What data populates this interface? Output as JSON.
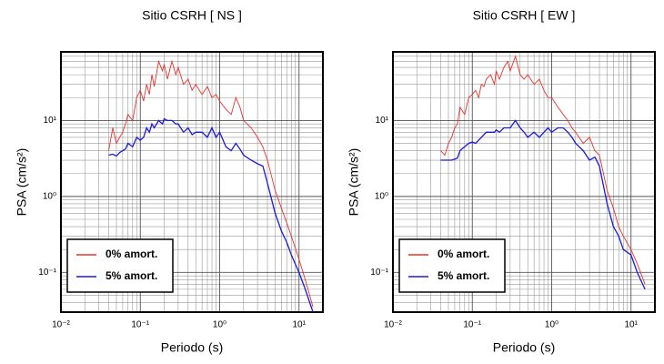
{
  "chart_data": [
    {
      "type": "line",
      "title": "Sitio CSRH [ NS ]",
      "xlabel": "Periodo (s)",
      "ylabel": "PSA (cm/s²)",
      "log_x": true,
      "log_y": true,
      "grid": true,
      "legend": "lower left",
      "xlim": [
        0.01,
        20
      ],
      "ylim": [
        0.03,
        80
      ],
      "xticks": [
        {
          "value": 0.01,
          "label": "10⁻²"
        },
        {
          "value": 0.1,
          "label": "10⁻¹"
        },
        {
          "value": 1,
          "label": "10⁰"
        },
        {
          "value": 10,
          "label": "10¹"
        }
      ],
      "yticks": [
        {
          "value": 0.1,
          "label": "10⁻¹"
        },
        {
          "value": 1,
          "label": "10⁰"
        },
        {
          "value": 10,
          "label": "10¹"
        }
      ],
      "xminorticks": [
        0.02,
        0.03,
        0.04,
        0.05,
        0.06,
        0.07,
        0.08,
        0.09,
        0.2,
        0.3,
        0.4,
        0.5,
        0.6,
        0.7,
        0.8,
        0.9,
        2,
        3,
        4,
        5,
        6,
        7,
        8,
        9
      ],
      "yminorticks": [
        0.04,
        0.05,
        0.06,
        0.07,
        0.08,
        0.09,
        0.2,
        0.3,
        0.4,
        0.5,
        0.6,
        0.7,
        0.8,
        0.9,
        2,
        3,
        4,
        5,
        6,
        7,
        8,
        9,
        20,
        30,
        40,
        50,
        60,
        70
      ],
      "x": [
        0.04,
        0.045,
        0.05,
        0.055,
        0.06,
        0.065,
        0.07,
        0.08,
        0.09,
        0.1,
        0.11,
        0.12,
        0.13,
        0.14,
        0.15,
        0.17,
        0.19,
        0.2,
        0.22,
        0.25,
        0.28,
        0.3,
        0.35,
        0.4,
        0.45,
        0.5,
        0.6,
        0.7,
        0.8,
        0.9,
        1,
        1.2,
        1.4,
        1.6,
        1.8,
        2,
        2.5,
        3,
        3.5,
        4,
        5,
        6,
        7,
        8,
        10,
        12,
        15
      ],
      "series": [
        {
          "name": "0% amort.",
          "color": "#e8332c",
          "values": [
            4,
            8,
            5,
            6,
            7,
            9,
            12,
            10,
            20,
            25,
            18,
            30,
            22,
            40,
            28,
            60,
            45,
            55,
            35,
            60,
            40,
            50,
            30,
            35,
            25,
            30,
            22,
            28,
            20,
            22,
            18,
            14,
            12,
            20,
            15,
            10,
            8,
            6,
            4.5,
            3,
            1.2,
            0.7,
            0.45,
            0.3,
            0.15,
            0.08,
            0.035
          ]
        },
        {
          "name": "5% amort.",
          "color": "#1a1adc",
          "values": [
            3.5,
            3.6,
            3.4,
            3.8,
            4,
            4.2,
            5,
            4.5,
            6,
            5.5,
            6,
            8,
            7,
            9,
            8,
            10,
            9,
            10.5,
            10,
            10,
            9,
            9,
            7,
            8,
            6.5,
            7,
            7,
            6,
            8,
            6,
            7,
            4.5,
            4,
            5,
            4.2,
            3.5,
            3,
            2.7,
            2.5,
            1.5,
            0.6,
            0.35,
            0.25,
            0.17,
            0.1,
            0.06,
            0.03
          ]
        }
      ]
    },
    {
      "type": "line",
      "title": "Sitio CSRH [ EW ]",
      "xlabel": "Periodo (s)",
      "ylabel": "PSA (cm/s²)",
      "log_x": true,
      "log_y": true,
      "grid": true,
      "legend": "lower left",
      "xlim": [
        0.01,
        20
      ],
      "ylim": [
        0.03,
        80
      ],
      "xticks": [
        {
          "value": 0.01,
          "label": "10⁻²"
        },
        {
          "value": 0.1,
          "label": "10⁻¹"
        },
        {
          "value": 1,
          "label": "10⁰"
        },
        {
          "value": 10,
          "label": "10¹"
        }
      ],
      "yticks": [
        {
          "value": 0.1,
          "label": "10⁻¹"
        },
        {
          "value": 1,
          "label": "10⁰"
        },
        {
          "value": 10,
          "label": "10¹"
        }
      ],
      "xminorticks": [
        0.02,
        0.03,
        0.04,
        0.05,
        0.06,
        0.07,
        0.08,
        0.09,
        0.2,
        0.3,
        0.4,
        0.5,
        0.6,
        0.7,
        0.8,
        0.9,
        2,
        3,
        4,
        5,
        6,
        7,
        8,
        9
      ],
      "yminorticks": [
        0.04,
        0.05,
        0.06,
        0.07,
        0.08,
        0.09,
        0.2,
        0.3,
        0.4,
        0.5,
        0.6,
        0.7,
        0.8,
        0.9,
        2,
        3,
        4,
        5,
        6,
        7,
        8,
        9,
        20,
        30,
        40,
        50,
        60,
        70
      ],
      "x": [
        0.04,
        0.045,
        0.05,
        0.055,
        0.06,
        0.065,
        0.07,
        0.08,
        0.09,
        0.1,
        0.11,
        0.12,
        0.13,
        0.14,
        0.15,
        0.17,
        0.19,
        0.2,
        0.22,
        0.25,
        0.28,
        0.3,
        0.35,
        0.4,
        0.45,
        0.5,
        0.6,
        0.7,
        0.8,
        0.9,
        1,
        1.2,
        1.4,
        1.6,
        1.8,
        2,
        2.5,
        3,
        3.5,
        4,
        5,
        6,
        7,
        8,
        10,
        12,
        15
      ],
      "series": [
        {
          "name": "0% amort.",
          "color": "#e8332c",
          "values": [
            4,
            3.5,
            5,
            6,
            8,
            9,
            15,
            12,
            20,
            22,
            25,
            20,
            30,
            28,
            35,
            40,
            30,
            45,
            35,
            50,
            60,
            45,
            70,
            40,
            35,
            40,
            30,
            35,
            25,
            20,
            20,
            15,
            12,
            10,
            8,
            7,
            5,
            6,
            4,
            3.5,
            1.2,
            0.7,
            0.4,
            0.3,
            0.2,
            0.13,
            0.07
          ]
        },
        {
          "name": "5% amort.",
          "color": "#1a1adc",
          "values": [
            3,
            3,
            3,
            3,
            3.1,
            3.2,
            4,
            4.5,
            5,
            5.2,
            5,
            5.5,
            6,
            6.5,
            7,
            7,
            7,
            7.5,
            7,
            8,
            8,
            8,
            10,
            8,
            7,
            6,
            7,
            6,
            7,
            8,
            7,
            8,
            8,
            7,
            6,
            5,
            4,
            3,
            3.3,
            2.5,
            0.8,
            0.4,
            0.3,
            0.2,
            0.17,
            0.1,
            0.06
          ]
        }
      ]
    }
  ]
}
